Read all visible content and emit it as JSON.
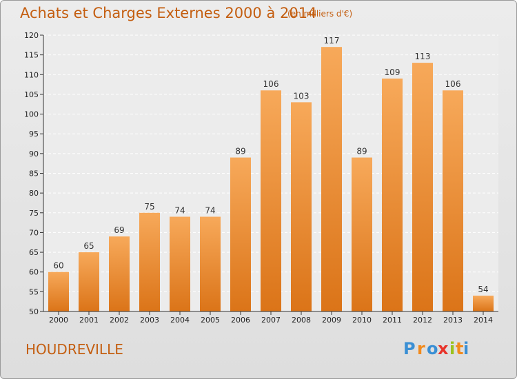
{
  "title": "Achats et Charges Externes 2000 à 2014",
  "subtitle": "(en milliers d'€)",
  "commune": "HOUDREVILLE",
  "brand": {
    "text": "Proxiti",
    "letters": [
      "P",
      "r",
      "o",
      "x",
      "i",
      "t",
      "i"
    ],
    "colors": [
      "#3a8fd4",
      "#f28a1c",
      "#3a8fd4",
      "#e8332a",
      "#9bc21f",
      "#f28a1c",
      "#3a8fd4"
    ]
  },
  "colors": {
    "bar_light": "#f7a95a",
    "bar_dark": "#db7418",
    "accent_text": "#c45e10"
  },
  "chart_data": {
    "type": "bar",
    "title": "Achats et Charges Externes 2000 à 2014",
    "subtitle": "(en milliers d'€)",
    "categories": [
      "2000",
      "2001",
      "2002",
      "2003",
      "2004",
      "2005",
      "2006",
      "2007",
      "2008",
      "2009",
      "2010",
      "2011",
      "2012",
      "2013",
      "2014"
    ],
    "values": [
      60,
      65,
      69,
      75,
      74,
      74,
      89,
      106,
      103,
      117,
      89,
      109,
      113,
      106,
      54
    ],
    "ylim": [
      50,
      120
    ],
    "yticks": [
      50,
      55,
      60,
      65,
      70,
      75,
      80,
      85,
      90,
      95,
      100,
      105,
      110,
      115,
      120
    ],
    "grid": true,
    "legend": "none"
  }
}
